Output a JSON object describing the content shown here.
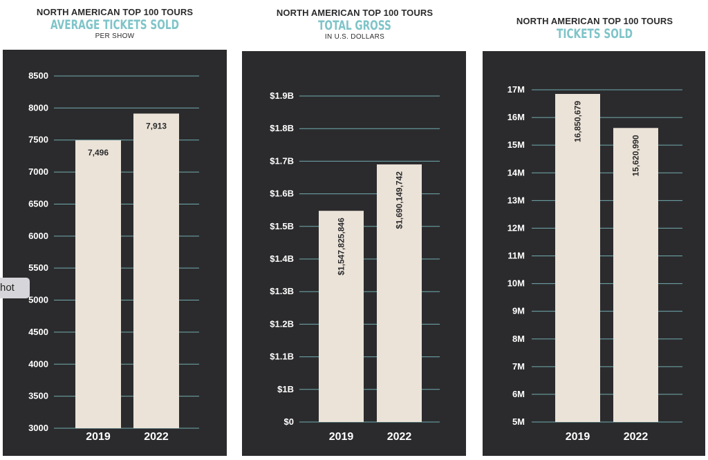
{
  "colors": {
    "panel_bg": "#2b2b2d",
    "bar": "#ebe3d8",
    "grid": "#7fc4c8",
    "accent": "#7fc4c8",
    "text": "#ffffff"
  },
  "overlay": {
    "label": "hot"
  },
  "chart_data": [
    {
      "type": "bar",
      "kicker": "NORTH AMERICAN TOP 100 TOURS",
      "title": "AVERAGE TICKETS SOLD",
      "subtitle": "PER SHOW",
      "categories": [
        "2019",
        "2022"
      ],
      "values": [
        7496,
        7913
      ],
      "value_labels": [
        "7,496",
        "7,913"
      ],
      "ylim": [
        3000,
        8500
      ],
      "yticks": [
        3000,
        3500,
        4000,
        4500,
        5000,
        5500,
        6000,
        6500,
        7000,
        7500,
        8000,
        8500
      ],
      "ytick_labels": [
        "3000",
        "3500",
        "4000",
        "4500",
        "5000",
        "5500",
        "6000",
        "6500",
        "7000",
        "7500",
        "8000",
        "8500"
      ],
      "label_orientation": "horizontal",
      "grid": true
    },
    {
      "type": "bar",
      "kicker": "NORTH AMERICAN TOP 100 TOURS",
      "title": "TOTAL GROSS",
      "subtitle": "IN U.S. DOLLARS",
      "categories": [
        "2019",
        "2022"
      ],
      "values": [
        1547825846,
        1690149742
      ],
      "value_labels": [
        "$1,547,825,846",
        "$1,690,149,742"
      ],
      "ylim": [
        0,
        1900000000
      ],
      "yticks": [
        0,
        1000000000,
        1100000000,
        1200000000,
        1300000000,
        1400000000,
        1500000000,
        1600000000,
        1700000000,
        1800000000,
        1900000000
      ],
      "ytick_labels": [
        "$0",
        "$1B",
        "$1.1B",
        "$1.2B",
        "$1.3B",
        "$1.4B",
        "$1.5B",
        "$1.6B",
        "$1.7B",
        "$1.8B",
        "$1.9B"
      ],
      "scale_break": true,
      "label_orientation": "vertical",
      "grid": true
    },
    {
      "type": "bar",
      "kicker": "NORTH AMERICAN TOP 100 TOURS",
      "title": "TICKETS SOLD",
      "subtitle": "",
      "categories": [
        "2019",
        "2022"
      ],
      "values": [
        16850679,
        15620990
      ],
      "value_labels": [
        "16,850,679",
        "15,620,990"
      ],
      "ylim": [
        5000000,
        17000000
      ],
      "yticks": [
        5000000,
        6000000,
        7000000,
        8000000,
        9000000,
        10000000,
        11000000,
        12000000,
        13000000,
        14000000,
        15000000,
        16000000,
        17000000
      ],
      "ytick_labels": [
        "5M",
        "6M",
        "7M",
        "8M",
        "9M",
        "10M",
        "11M",
        "12M",
        "13M",
        "14M",
        "15M",
        "16M",
        "17M"
      ],
      "label_orientation": "vertical",
      "grid": true
    }
  ]
}
